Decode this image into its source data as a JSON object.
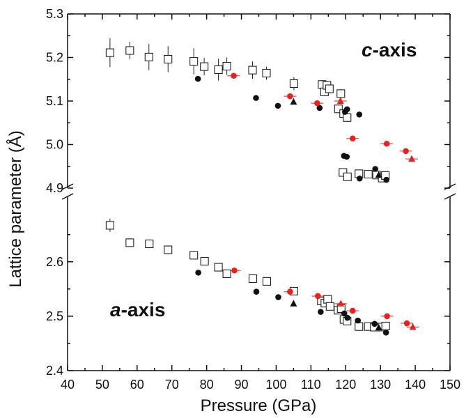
{
  "chart_data": {
    "type": "scatter",
    "xlabel": "Pressure (GPa)",
    "ylabel": "Lattice parameter (Å)",
    "xlim": [
      40,
      150
    ],
    "x_ticks": [
      "40",
      "50",
      "60",
      "70",
      "80",
      "90",
      "100",
      "110",
      "120",
      "130",
      "140",
      "150"
    ],
    "broken_y_axis": true,
    "panels": [
      {
        "name": "c-axis",
        "ylim": [
          4.9,
          5.3
        ],
        "y_ticks": [
          "4.9",
          "5.0",
          "5.1",
          "5.2",
          "5.3"
        ],
        "annotation": {
          "italic": "c",
          "rest": "-axis"
        },
        "series": [
          {
            "marker": "open-square",
            "points": [
              [
                52.2,
                5.211,
                0.033
              ],
              [
                57.9,
                5.216,
                0.02
              ],
              [
                63.4,
                5.201,
                0.03
              ],
              [
                68.9,
                5.196,
                0.03
              ],
              [
                76.3,
                5.191,
                0.03
              ],
              [
                79.3,
                5.179,
                0.02
              ],
              [
                83.4,
                5.172,
                0.025
              ],
              [
                85.8,
                5.18,
                0.02
              ],
              [
                93.2,
                5.171,
                0.02
              ],
              [
                97.2,
                5.164,
                0.015
              ],
              [
                105.1,
                5.14,
                0.015
              ],
              [
                113.2,
                5.138,
                0.01
              ],
              [
                113.9,
                5.121,
                0.01
              ],
              [
                114.6,
                5.136,
                0.01
              ],
              [
                115.3,
                5.128,
                0.01
              ],
              [
                117.9,
                5.082,
                0.01
              ],
              [
                118.6,
                5.117,
                0.01
              ],
              [
                119.4,
                5.071,
                0.01
              ],
              [
                120.4,
                5.062,
                0.01
              ],
              [
                119.2,
                4.936,
                0
              ],
              [
                120.5,
                4.926,
                0
              ],
              [
                123.8,
                4.933,
                0
              ],
              [
                126.5,
                4.932,
                0
              ],
              [
                128.9,
                4.93,
                0
              ],
              [
                130.5,
                4.923,
                0
              ],
              [
                131.4,
                4.929,
                0
              ]
            ]
          },
          {
            "marker": "filled-circle",
            "points": [
              [
                77.5,
                5.151
              ],
              [
                94.2,
                5.107
              ],
              [
                100.5,
                5.089
              ],
              [
                112.5,
                5.084
              ],
              [
                119.8,
                5.075
              ],
              [
                120.4,
                5.081
              ],
              [
                123.9,
                5.069
              ],
              [
                119.5,
                4.974
              ],
              [
                120.3,
                4.972
              ],
              [
                124.0,
                4.922
              ],
              [
                128.5,
                4.944
              ],
              [
                131.7,
                4.919
              ]
            ]
          },
          {
            "marker": "filled-triangle",
            "points": [
              [
                105.0,
                5.098
              ],
              [
                129.5,
                4.93
              ]
            ]
          },
          {
            "marker": "red-circle",
            "color": "#e8231f",
            "points": [
              [
                87.8,
                5.158
              ],
              [
                104.0,
                5.111
              ],
              [
                111.8,
                5.095
              ],
              [
                122.0,
                5.014
              ],
              [
                131.8,
                5.002
              ],
              [
                137.3,
                4.985
              ]
            ]
          },
          {
            "marker": "red-triangle",
            "color": "#e8231f",
            "points": [
              [
                118.5,
                5.1
              ],
              [
                139.0,
                4.967
              ]
            ]
          }
        ]
      },
      {
        "name": "a-axis",
        "ylim": [
          2.4,
          2.72
        ],
        "y_ticks": [
          "2.4",
          "2.5",
          "2.6"
        ],
        "annotation": {
          "italic": "a",
          "rest": "-axis"
        },
        "series": [
          {
            "marker": "open-square",
            "points": [
              [
                52.2,
                2.667,
                0.012
              ],
              [
                57.9,
                2.635,
                0.008
              ],
              [
                63.5,
                2.633,
                0.008
              ],
              [
                68.9,
                2.622,
                0.008
              ],
              [
                76.3,
                2.612,
                0.008
              ],
              [
                79.4,
                2.601,
                0.006
              ],
              [
                83.4,
                2.59,
                0.006
              ],
              [
                85.8,
                2.578,
                0.006
              ],
              [
                93.3,
                2.569,
                0.005
              ],
              [
                97.3,
                2.564,
                0.005
              ],
              [
                105.1,
                2.546,
                0.005
              ],
              [
                113.0,
                2.528,
                0.005
              ],
              [
                114.0,
                2.524,
                0.005
              ],
              [
                114.8,
                2.531,
                0.005
              ],
              [
                115.5,
                2.518,
                0.005
              ],
              [
                117.8,
                2.511,
                0.005
              ],
              [
                118.7,
                2.514,
                0.005
              ],
              [
                119.5,
                2.494,
                0.005
              ],
              [
                120.4,
                2.491,
                0.005
              ],
              [
                123.8,
                2.481,
                0
              ],
              [
                126.5,
                2.481,
                0
              ],
              [
                128.2,
                2.48,
                0
              ],
              [
                130.4,
                2.48,
                0
              ],
              [
                131.5,
                2.482,
                0
              ]
            ]
          },
          {
            "marker": "filled-circle",
            "points": [
              [
                77.6,
                2.58
              ],
              [
                94.3,
                2.545
              ],
              [
                100.6,
                2.535
              ],
              [
                112.8,
                2.508
              ],
              [
                119.6,
                2.505
              ],
              [
                120.5,
                2.497
              ],
              [
                123.5,
                2.492
              ],
              [
                128.3,
                2.486
              ],
              [
                131.6,
                2.47
              ]
            ]
          },
          {
            "marker": "filled-triangle",
            "points": [
              [
                105.0,
                2.523
              ],
              [
                129.5,
                2.479
              ]
            ]
          },
          {
            "marker": "red-circle",
            "color": "#e8231f",
            "points": [
              [
                88.0,
                2.584
              ],
              [
                104.0,
                2.545
              ],
              [
                112.0,
                2.537
              ],
              [
                122.0,
                2.51
              ],
              [
                131.9,
                2.5
              ],
              [
                137.6,
                2.487
              ]
            ]
          },
          {
            "marker": "red-triangle",
            "color": "#e8231f",
            "points": [
              [
                118.6,
                2.523
              ],
              [
                139.3,
                2.48
              ]
            ]
          }
        ]
      }
    ]
  }
}
